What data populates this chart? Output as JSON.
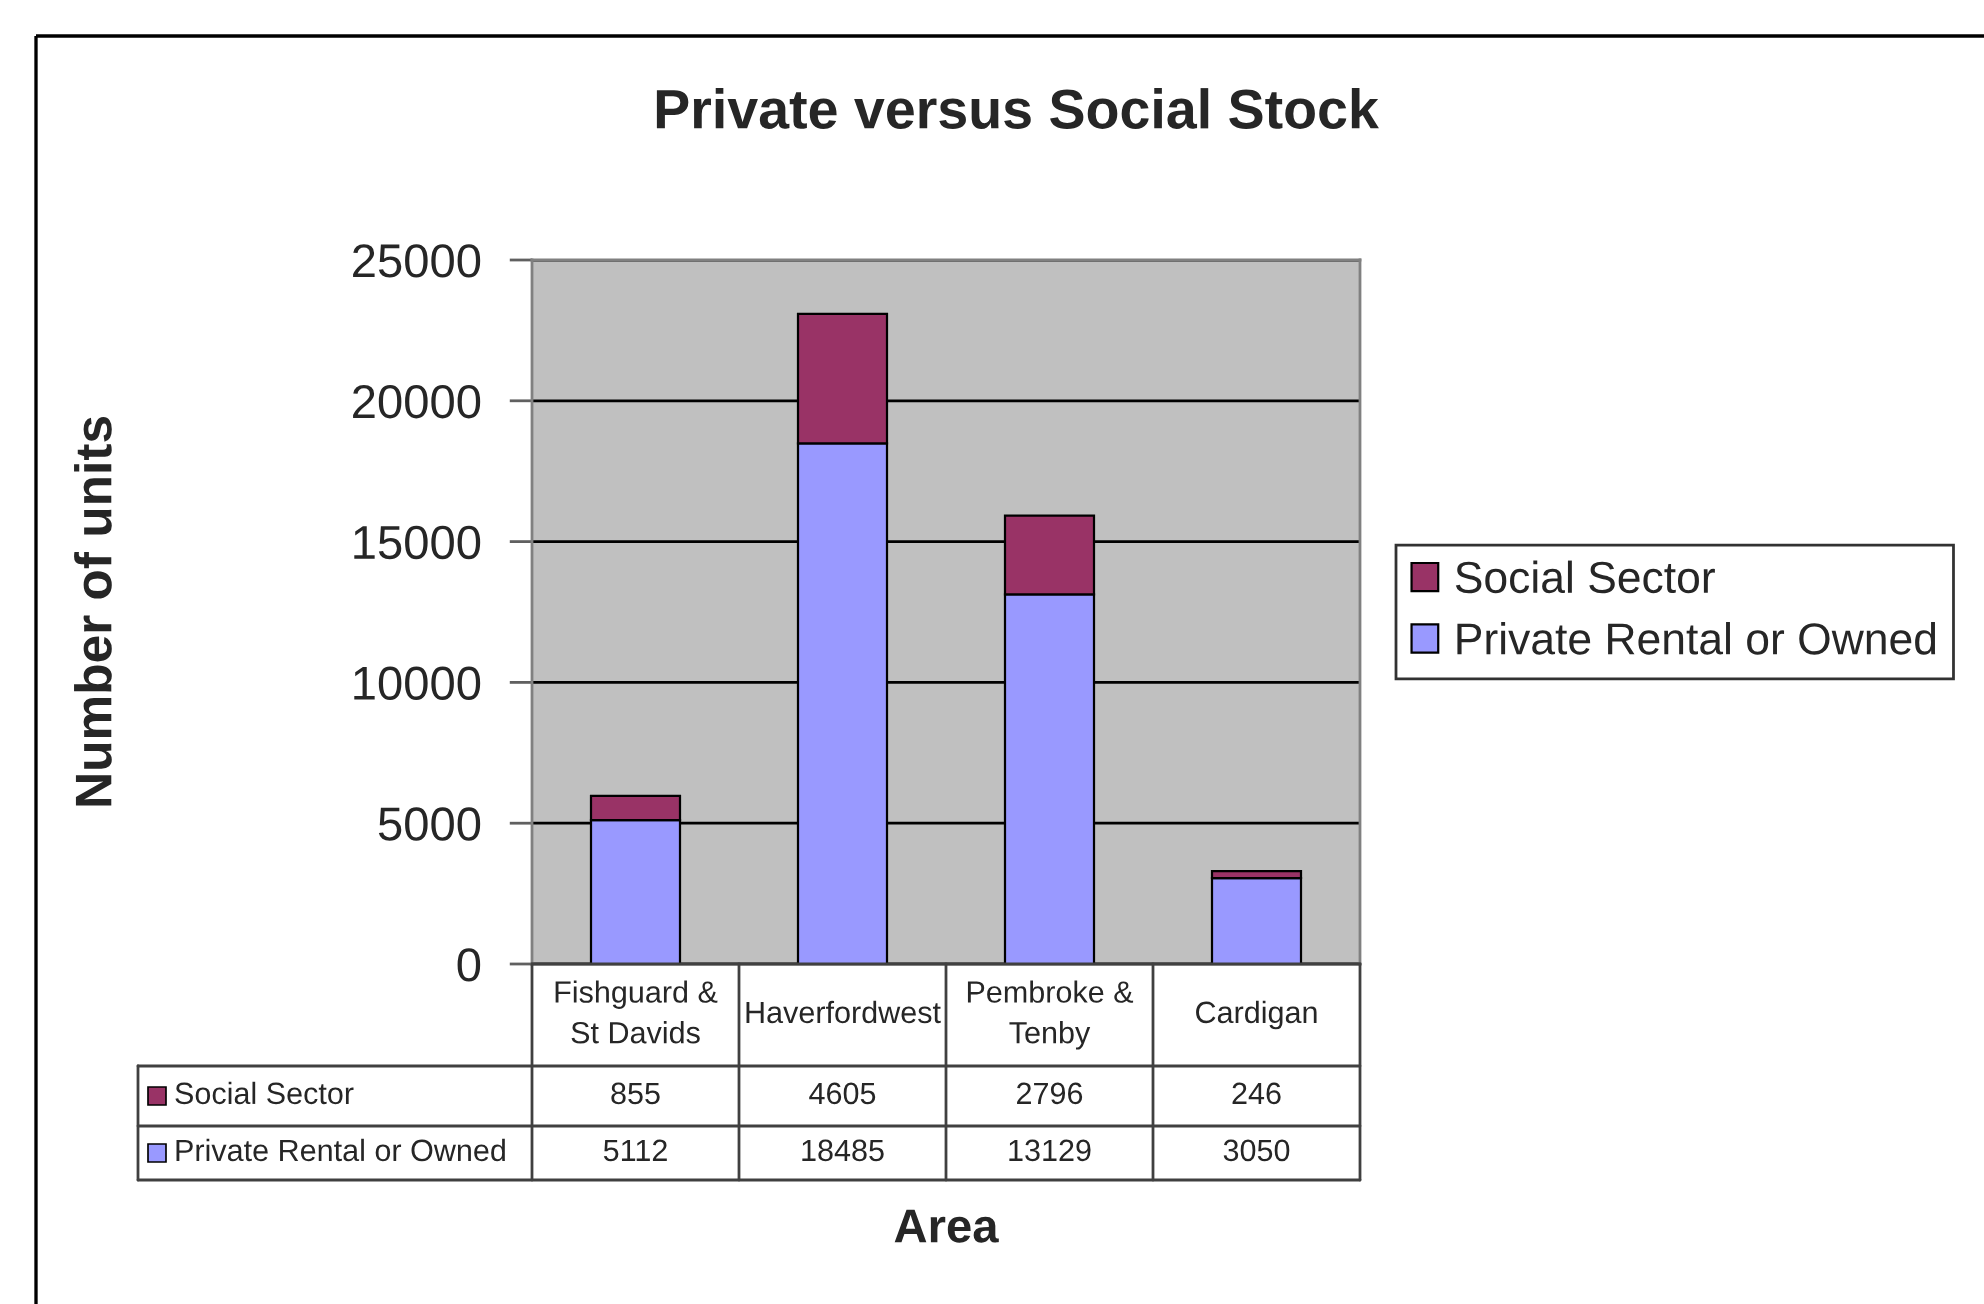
{
  "chart_data": {
    "type": "bar",
    "title": "Private versus Social Stock",
    "xlabel": "Area",
    "ylabel": "Number of units",
    "categories": [
      "Fishguard &\nSt Davids",
      "Haverfordwest",
      "Pembroke &\nTenby",
      "Cardigan"
    ],
    "stacked": true,
    "series": [
      {
        "name": "Private Rental or Owned",
        "color": "#9999ff",
        "values": [
          5112,
          18485,
          13129,
          3050
        ]
      },
      {
        "name": "Social Sector",
        "color": "#993366",
        "values": [
          855,
          4605,
          2796,
          246
        ]
      }
    ],
    "ylim": [
      0,
      25000
    ],
    "yticks": [
      0,
      5000,
      10000,
      15000,
      20000,
      25000
    ],
    "grid": "y",
    "legend": "right",
    "data_labels": true
  }
}
